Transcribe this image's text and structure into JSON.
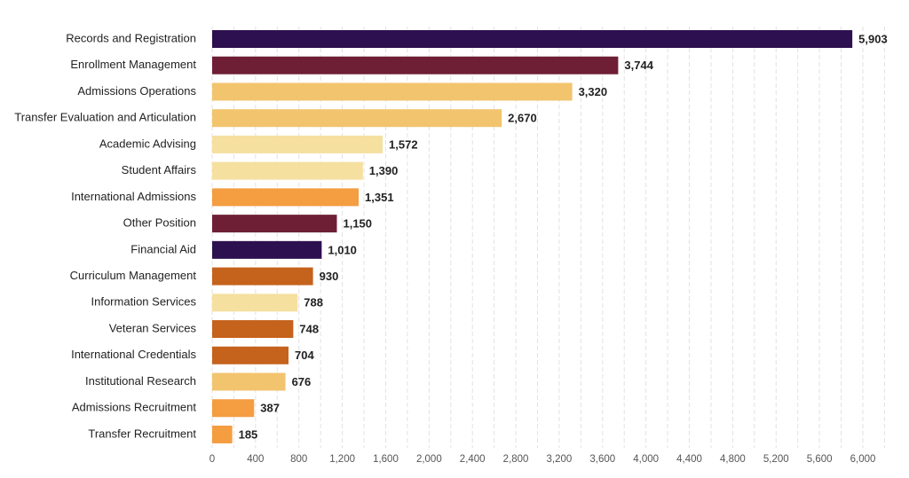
{
  "chart_data": {
    "type": "barh",
    "categories": [
      "Records and Registration",
      "Enrollment Management",
      "Admissions Operations",
      "Transfer Evaluation and Articulation",
      "Academic Advising",
      "Student Affairs",
      "International Admissions",
      "Other Position",
      "Financial Aid",
      "Curriculum Management",
      "Information Services",
      "Veteran Services",
      "International Credentials",
      "Institutional Research",
      "Admissions Recruitment",
      "Transfer Recruitment"
    ],
    "values": [
      5903,
      3744,
      3320,
      2670,
      1572,
      1390,
      1351,
      1150,
      1010,
      930,
      788,
      748,
      704,
      676,
      387,
      185
    ],
    "value_labels": [
      "5,903",
      "3,744",
      "3,320",
      "2,670",
      "1,572",
      "1,390",
      "1,351",
      "1,150",
      "1,010",
      "930",
      "788",
      "748",
      "704",
      "676",
      "387",
      "185"
    ],
    "colors": [
      "#2d1050",
      "#6e1f35",
      "#f2c46e",
      "#f2c46e",
      "#f5e0a0",
      "#f5e0a0",
      "#f49d41",
      "#6e1f35",
      "#2d1050",
      "#c5621c",
      "#f5e0a0",
      "#c5621c",
      "#c5621c",
      "#f2c46e",
      "#f49d41",
      "#f49d41"
    ],
    "xlim": [
      0,
      6200
    ],
    "xticks": [
      0,
      400,
      800,
      {
        "value": 1200,
        "label": "1,200"
      },
      {
        "value": 1600,
        "label": "1,600"
      },
      {
        "value": 2000,
        "label": "2,000"
      },
      {
        "value": 2400,
        "label": "2,400"
      },
      {
        "value": 2800,
        "label": "2,800"
      },
      {
        "value": 3200,
        "label": "3,200"
      },
      {
        "value": 3600,
        "label": "3,600"
      },
      {
        "value": 4000,
        "label": "4,000"
      },
      {
        "value": 4400,
        "label": "4,400"
      },
      {
        "value": 4800,
        "label": "4,800"
      },
      {
        "value": 5200,
        "label": "5,200"
      },
      {
        "value": 5600,
        "label": "5,600"
      },
      {
        "value": 6000,
        "label": "6,000"
      }
    ],
    "minor_xticks": [
      200,
      600,
      1000,
      1400,
      1800,
      2200,
      2600,
      3000,
      3400,
      3800,
      4200,
      4600,
      5000,
      5400,
      5800,
      6200
    ],
    "grid": true
  }
}
